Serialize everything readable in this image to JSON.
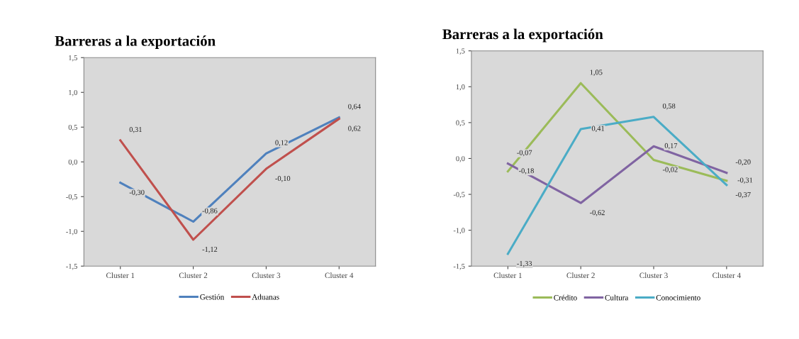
{
  "chart_data": [
    {
      "type": "line",
      "title": "Barreras a la exportación",
      "categories": [
        "Cluster 1",
        "Cluster 2",
        "Cluster 3",
        "Cluster 4"
      ],
      "ylim": [
        -1.5,
        1.5
      ],
      "yticks": [
        {
          "value": -1.5,
          "label": "-1,5"
        },
        {
          "value": -1.0,
          "label": "-1,0"
        },
        {
          "value": -0.5,
          "label": "-0,5"
        },
        {
          "value": 0.0,
          "label": "0,0"
        },
        {
          "value": 0.5,
          "label": "0,5"
        },
        {
          "value": 1.0,
          "label": "1,0"
        },
        {
          "value": 1.5,
          "label": "1,5"
        }
      ],
      "grid": false,
      "legend": "bottom",
      "marker": "none",
      "line_style": "solid",
      "series": [
        {
          "name": "Gestión",
          "color": "#4f81bd",
          "values": [
            -0.3,
            -0.86,
            0.12,
            0.64
          ],
          "value_labels": [
            "-0,30",
            "-0,86",
            "0,12",
            "0,64"
          ]
        },
        {
          "name": "Aduanas",
          "color": "#c0504d",
          "values": [
            0.31,
            -1.12,
            -0.1,
            0.62
          ],
          "value_labels": [
            "0,31",
            "-1,12",
            "-0,10",
            "0,62"
          ]
        }
      ]
    },
    {
      "type": "line",
      "title": "Barreras a la exportación",
      "categories": [
        "Cluster 1",
        "Cluster 2",
        "Cluster 3",
        "Cluster 4"
      ],
      "ylim": [
        -1.5,
        1.5
      ],
      "yticks": [
        {
          "value": -1.5,
          "label": "-1,5"
        },
        {
          "value": -1.0,
          "label": "-1,0"
        },
        {
          "value": -0.5,
          "label": "-0,5"
        },
        {
          "value": 0.0,
          "label": "0,0"
        },
        {
          "value": 0.5,
          "label": "0,5"
        },
        {
          "value": 1.0,
          "label": "1,0"
        },
        {
          "value": 1.5,
          "label": "1,5"
        }
      ],
      "grid": false,
      "legend": "bottom",
      "marker": "none",
      "line_style": "solid",
      "series": [
        {
          "name": "Crédito",
          "color": "#9bbb59",
          "values": [
            -0.18,
            1.05,
            -0.02,
            -0.31
          ],
          "value_labels": [
            "-0,18",
            "1,05",
            "-0,02",
            "-0,31"
          ]
        },
        {
          "name": "Cultura",
          "color": "#8064a2",
          "values": [
            -0.07,
            -0.62,
            0.17,
            -0.2
          ],
          "value_labels": [
            "-0,07",
            "-0,62",
            "0,17",
            "-0,20"
          ]
        },
        {
          "name": "Conocimiento",
          "color": "#4bacc6",
          "values": [
            -1.33,
            0.41,
            0.58,
            -0.37
          ],
          "value_labels": [
            "-1,33",
            "0,41",
            "0,58",
            "-0,37"
          ]
        }
      ]
    }
  ]
}
